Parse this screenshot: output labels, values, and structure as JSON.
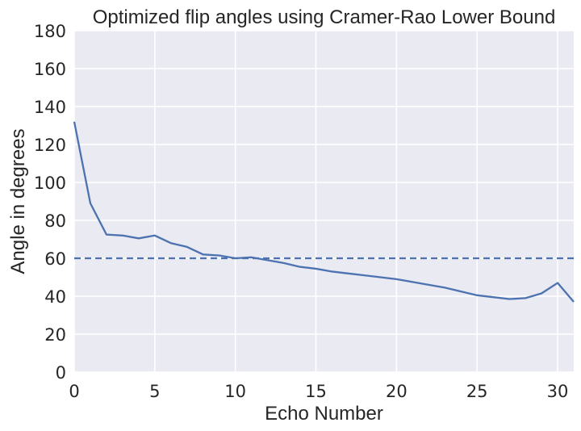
{
  "chart_data": {
    "type": "line",
    "title": "Optimized flip angles using Cramer-Rao Lower Bound",
    "xlabel": "Echo Number",
    "ylabel": "Angle in degrees",
    "xlim": [
      0,
      31
    ],
    "ylim": [
      0,
      180
    ],
    "xticks": [
      0,
      5,
      10,
      15,
      20,
      25,
      30
    ],
    "yticks": [
      0,
      20,
      40,
      60,
      80,
      100,
      120,
      140,
      160,
      180
    ],
    "grid": true,
    "series": [
      {
        "x": [
          0,
          1,
          2,
          3,
          4,
          5,
          6,
          7,
          8,
          9,
          10,
          11,
          12,
          13,
          14,
          15,
          16,
          17,
          18,
          19,
          20,
          21,
          22,
          23,
          24,
          25,
          26,
          27,
          28,
          29,
          30,
          31
        ],
        "values": [
          132,
          89,
          72.5,
          72,
          70.5,
          72,
          68,
          66,
          62,
          61.5,
          60,
          60.5,
          59,
          57.5,
          55.5,
          54.5,
          53,
          52,
          51,
          50,
          49,
          47.5,
          46,
          44.5,
          42.5,
          40.5,
          39.5,
          38.5,
          39,
          41.5,
          47,
          37
        ],
        "color": "#4c72b0",
        "style": "solid"
      },
      {
        "x": [
          0,
          31
        ],
        "values": [
          60,
          60
        ],
        "color": "#4c72b0",
        "style": "dashed"
      }
    ],
    "colors": {
      "plot_bg": "#eaeaf2",
      "grid": "#ffffff",
      "text": "#262626"
    }
  }
}
